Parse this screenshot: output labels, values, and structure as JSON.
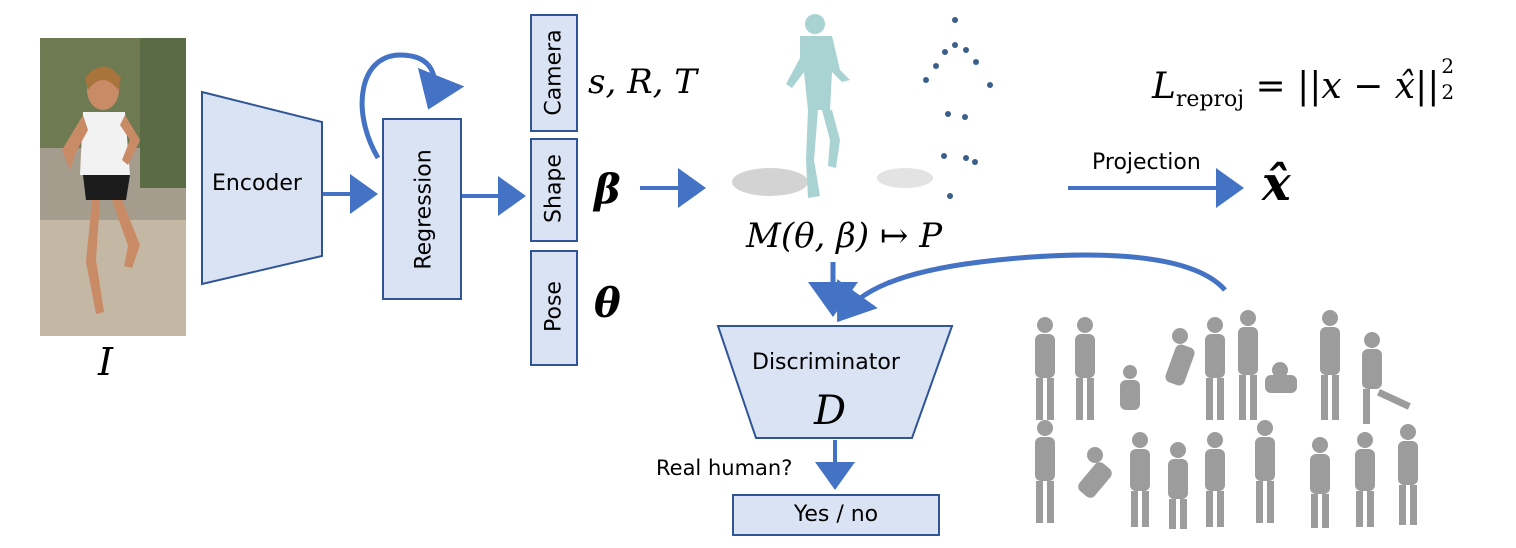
{
  "input": {
    "image_label": "I"
  },
  "encoder": {
    "label": "Encoder"
  },
  "regression": {
    "label": "Regression"
  },
  "params": {
    "camera": {
      "label": "Camera",
      "symbol": "s, R, T"
    },
    "shape": {
      "label": "Shape",
      "symbol": "β"
    },
    "pose": {
      "label": "Pose",
      "symbol": "θ"
    }
  },
  "mesh": {
    "equation": "M(θ, β) ↦ P"
  },
  "loss": {
    "lhs": "L",
    "subscript": "reproj",
    "rhs": " = ||x − x̂||",
    "sub2": "2",
    "sup2": "2"
  },
  "projection": {
    "label": "Projection",
    "output": "x̂"
  },
  "discriminator": {
    "label": "Discriminator",
    "symbol": "D",
    "question": "Real human?",
    "output": "Yes / no"
  },
  "colors": {
    "accent": "#4472c4",
    "box_fill": "#dae3f3",
    "box_stroke": "#2f5597"
  }
}
